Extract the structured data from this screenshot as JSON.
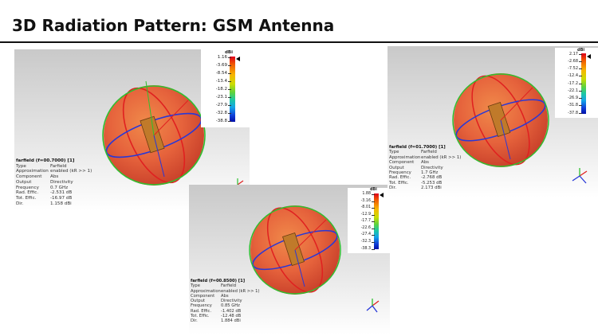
{
  "slide": {
    "title": "3D Radiation Pattern: GSM Antenna"
  },
  "colors": {
    "sphere": "#e9643f",
    "ring_red": "#e02020",
    "ring_green": "#2fbf2f",
    "ring_blue": "#2838d8",
    "background_top": "#cfcfcf"
  },
  "panels": [
    {
      "id": "p1",
      "colorbar": {
        "unit": "dBi",
        "ticks": [
          "1.16",
          "-3.69",
          "-8.54",
          "-13.4",
          "-18.2",
          "-23.1",
          "-27.9",
          "-32.8",
          "-38.8"
        ],
        "marker_value": "1.16"
      },
      "info": {
        "title": "farfield (f=00.7000) [1]",
        "rows": [
          {
            "k": "Type",
            "v": "Farfield"
          },
          {
            "k": "Approximation",
            "v": "enabled (kR >> 1)"
          },
          {
            "k": "Component",
            "v": "Abs"
          },
          {
            "k": "Output",
            "v": "Directivity"
          },
          {
            "k": "Frequency",
            "v": "0.7 GHz"
          },
          {
            "k": "Rad. Effic.",
            "v": "-2.531 dB"
          },
          {
            "k": "Tot. Effic.",
            "v": "-16.97 dB"
          },
          {
            "k": "Dir.",
            "v": "1.158 dBi"
          }
        ]
      }
    },
    {
      "id": "p2",
      "colorbar": {
        "unit": "dBi",
        "ticks": [
          "1.88",
          "-3.16",
          "-8.01",
          "-12.9",
          "-17.7",
          "-22.6",
          "-27.4",
          "-32.3",
          "-38.3"
        ],
        "marker_value": "1.88"
      },
      "info": {
        "title": "farfield (f=00.8500) [1]",
        "rows": [
          {
            "k": "Type",
            "v": "Farfield"
          },
          {
            "k": "Approximation",
            "v": "enabled (kR >> 1)"
          },
          {
            "k": "Component",
            "v": "Abs"
          },
          {
            "k": "Output",
            "v": "Directivity"
          },
          {
            "k": "Frequency",
            "v": "0.85 GHz"
          },
          {
            "k": "Rad. Effic.",
            "v": "-1.402 dB"
          },
          {
            "k": "Tot. Effic.",
            "v": "-12.48 dB"
          },
          {
            "k": "Dir.",
            "v": "1.884 dBi"
          }
        ]
      }
    },
    {
      "id": "p3",
      "colorbar": {
        "unit": "dBi",
        "ticks": [
          "2.17",
          "-2.68",
          "-7.52",
          "-12.4",
          "-17.2",
          "-22.1",
          "-26.9",
          "-31.8",
          "-37.8"
        ],
        "marker_value": "2.17"
      },
      "info": {
        "title": "farfield (f=01.7000) [1]",
        "rows": [
          {
            "k": "Type",
            "v": "Farfield"
          },
          {
            "k": "Approximation",
            "v": "enabled (kR >> 1)"
          },
          {
            "k": "Component",
            "v": "Abs"
          },
          {
            "k": "Output",
            "v": "Directivity"
          },
          {
            "k": "Frequency",
            "v": "1.7 GHz"
          },
          {
            "k": "Rad. Effic.",
            "v": "-2.768 dB"
          },
          {
            "k": "Tot. Effic.",
            "v": "-5.253 dB"
          },
          {
            "k": "Dir.",
            "v": "2.173 dBi"
          }
        ]
      }
    }
  ]
}
